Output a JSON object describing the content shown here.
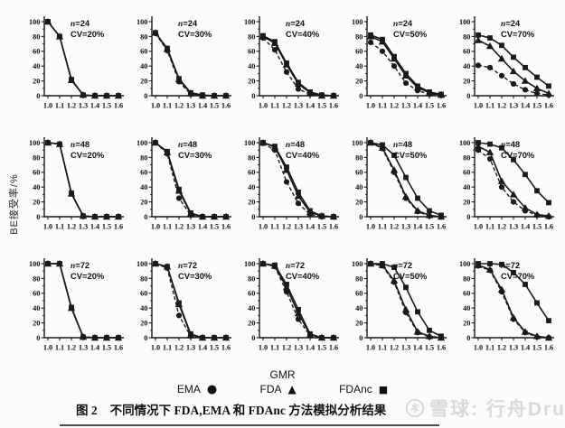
{
  "figure": {
    "caption_prefix": "图 2",
    "caption_text": "不同情况下 FDA,EMA 和 FDAnc 方法模拟分析结果"
  },
  "watermark": {
    "text": "雪球: 行舟Drug"
  },
  "legend": {
    "items": [
      {
        "label": "EMA",
        "glyph": "●",
        "marker": "circle"
      },
      {
        "label": "FDA",
        "glyph": "▲",
        "marker": "triangle"
      },
      {
        "label": "FDAnc",
        "glyph": "■",
        "marker": "square"
      }
    ]
  },
  "colors": {
    "ink": "#1a1a1a",
    "watermark": "#d9d9d9",
    "background": "#fcfcfc"
  },
  "chart_data": {
    "type": "line",
    "title": "",
    "xlabel": "GMR",
    "ylabel": "BE接受率/%",
    "x": [
      1.0,
      1.1,
      1.2,
      1.3,
      1.4,
      1.5,
      1.6
    ],
    "xtick_labels": [
      "1.0",
      "1.1",
      "1.2",
      "1.3",
      "1.4",
      "1.5",
      "1.6"
    ],
    "yticks": [
      0,
      20,
      40,
      60,
      80,
      100
    ],
    "ylim": [
      0,
      100
    ],
    "grid": false,
    "legend_position": "bottom",
    "series_names": [
      "EMA",
      "FDA",
      "FDAnc"
    ],
    "panels": [
      {
        "n_label": "n=24",
        "cv_label": "CV=20%",
        "EMA": [
          100,
          80,
          21,
          1,
          0,
          0,
          0
        ],
        "FDA": [
          100,
          80,
          21,
          1,
          0,
          0,
          0
        ],
        "FDAnc": [
          100,
          80,
          22,
          1,
          0,
          0,
          0
        ]
      },
      {
        "n_label": "n=24",
        "cv_label": "CV=30%",
        "EMA": [
          84,
          61,
          19,
          2,
          0,
          0,
          0
        ],
        "FDA": [
          85,
          63,
          22,
          3,
          0,
          0,
          0
        ],
        "FDAnc": [
          85,
          64,
          23,
          4,
          1,
          0,
          0
        ]
      },
      {
        "n_label": "n=24",
        "cv_label": "CV=40%",
        "EMA": [
          78,
          62,
          32,
          9,
          2,
          0,
          0
        ],
        "FDA": [
          80,
          71,
          42,
          16,
          4,
          0,
          0
        ],
        "FDAnc": [
          81,
          73,
          44,
          18,
          5,
          1,
          0
        ]
      },
      {
        "n_label": "n=24",
        "cv_label": "CV=50%",
        "EMA": [
          72,
          60,
          40,
          17,
          7,
          2,
          1
        ],
        "FDA": [
          80,
          73,
          50,
          27,
          11,
          4,
          1
        ],
        "FDAnc": [
          82,
          76,
          53,
          30,
          13,
          5,
          2
        ]
      },
      {
        "n_label": "n=24",
        "cv_label": "CV=70%",
        "EMA": [
          41,
          38,
          27,
          16,
          8,
          3,
          1
        ],
        "FDA": [
          75,
          67,
          50,
          33,
          20,
          10,
          3
        ],
        "FDAnc": [
          82,
          78,
          68,
          52,
          38,
          25,
          13
        ]
      },
      {
        "n_label": "n=48",
        "cv_label": "CV=20%",
        "EMA": [
          100,
          98,
          31,
          1,
          0,
          0,
          0
        ],
        "FDA": [
          100,
          98,
          31,
          1,
          0,
          0,
          0
        ],
        "FDAnc": [
          100,
          98,
          32,
          1,
          0,
          0,
          0
        ]
      },
      {
        "n_label": "n=48",
        "cv_label": "CV=30%",
        "EMA": [
          100,
          85,
          25,
          2,
          0,
          0,
          0
        ],
        "FDA": [
          100,
          87,
          35,
          4,
          0,
          0,
          0
        ],
        "FDAnc": [
          100,
          88,
          37,
          5,
          0,
          0,
          0
        ]
      },
      {
        "n_label": "n=48",
        "cv_label": "CV=40%",
        "EMA": [
          99,
          90,
          47,
          18,
          3,
          0,
          0
        ],
        "FDA": [
          100,
          94,
          63,
          28,
          6,
          1,
          0
        ],
        "FDAnc": [
          100,
          95,
          67,
          33,
          8,
          1,
          0
        ]
      },
      {
        "n_label": "n=48",
        "cv_label": "CV=50%",
        "EMA": [
          100,
          92,
          60,
          25,
          7,
          1,
          0
        ],
        "FDA": [
          100,
          93,
          63,
          27,
          8,
          2,
          0
        ],
        "FDAnc": [
          100,
          97,
          83,
          53,
          25,
          8,
          2
        ]
      },
      {
        "n_label": "n=48",
        "cv_label": "CV=70%",
        "EMA": [
          90,
          78,
          40,
          20,
          8,
          2,
          0
        ],
        "FDA": [
          95,
          87,
          48,
          30,
          12,
          3,
          1
        ],
        "FDAnc": [
          100,
          98,
          93,
          77,
          57,
          35,
          19
        ]
      },
      {
        "n_label": "n=72",
        "cv_label": "CV=20%",
        "EMA": [
          100,
          100,
          40,
          1,
          0,
          0,
          0
        ],
        "FDA": [
          100,
          100,
          40,
          1,
          0,
          0,
          0
        ],
        "FDAnc": [
          100,
          100,
          41,
          1,
          0,
          0,
          0
        ]
      },
      {
        "n_label": "n=72",
        "cv_label": "CV=30%",
        "EMA": [
          100,
          94,
          30,
          2,
          0,
          0,
          0
        ],
        "FDA": [
          100,
          96,
          45,
          4,
          0,
          0,
          0
        ],
        "FDAnc": [
          100,
          96,
          47,
          5,
          0,
          0,
          0
        ]
      },
      {
        "n_label": "n=72",
        "cv_label": "CV=40%",
        "EMA": [
          100,
          96,
          62,
          25,
          3,
          0,
          0
        ],
        "FDA": [
          100,
          97,
          68,
          33,
          4,
          0,
          0
        ],
        "FDAnc": [
          100,
          98,
          72,
          38,
          5,
          0,
          0
        ]
      },
      {
        "n_label": "n=72",
        "cv_label": "CV=50%",
        "EMA": [
          100,
          97,
          75,
          34,
          7,
          1,
          0
        ],
        "FDA": [
          100,
          98,
          77,
          38,
          8,
          2,
          0
        ],
        "FDAnc": [
          100,
          100,
          95,
          68,
          35,
          10,
          2
        ]
      },
      {
        "n_label": "n=72",
        "cv_label": "CV=70%",
        "EMA": [
          97,
          91,
          62,
          25,
          7,
          1,
          0
        ],
        "FDA": [
          98,
          92,
          65,
          27,
          8,
          2,
          0
        ],
        "FDAnc": [
          100,
          100,
          99,
          88,
          72,
          47,
          23
        ]
      }
    ]
  }
}
